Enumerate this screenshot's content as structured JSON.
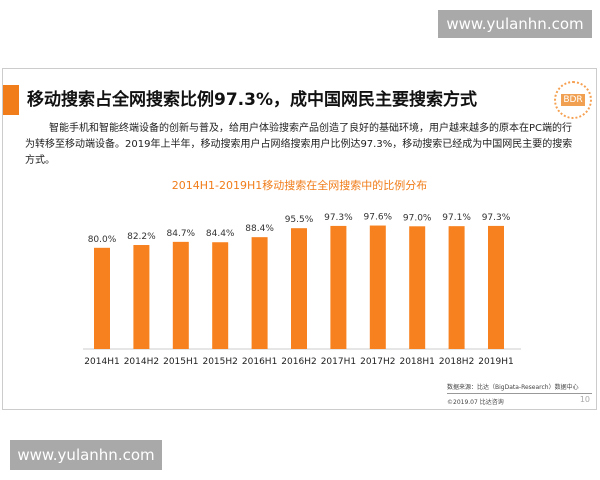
{
  "watermarks": [
    "www.yulanhn.com",
    "www.yulanhn.com"
  ],
  "slide": {
    "title": "移动搜索占全网搜索比例97.3%，成中国网民主要搜索方式",
    "logo": "BDR",
    "description": "智能手机和智能终端设备的创新与普及，给用户体验搜索产品创造了良好的基础环境，用户越来越多的原本在PC端的行为转移至移动端设备。2019年上半年，移动搜索用户占网络搜索用户比例达97.3%，移动搜索已经成为中国网民主要的搜索方式。",
    "source": "数据来源：比达（BigData-Research）数据中心",
    "copyright": "©2019.07 比达咨询",
    "page": "10"
  },
  "chart_data": {
    "type": "bar",
    "title": "2014H1-2019H1移动搜索在全网搜索中的比例分布",
    "categories": [
      "2014H1",
      "2014H2",
      "2015H1",
      "2015H2",
      "2016H1",
      "2016H2",
      "2017H1",
      "2017H2",
      "2018H1",
      "2018H2",
      "2019H1"
    ],
    "values": [
      80.0,
      82.2,
      84.7,
      84.4,
      88.4,
      95.5,
      97.3,
      97.6,
      97.0,
      97.1,
      97.3
    ],
    "data_labels": [
      "80.0%",
      "82.2%",
      "84.7%",
      "84.4%",
      "88.4%",
      "95.5%",
      "97.3%",
      "97.6%",
      "97.0%",
      "97.1%",
      "97.3%"
    ],
    "ylim": [
      0,
      100
    ],
    "grid": false,
    "color": "#f7811e"
  }
}
